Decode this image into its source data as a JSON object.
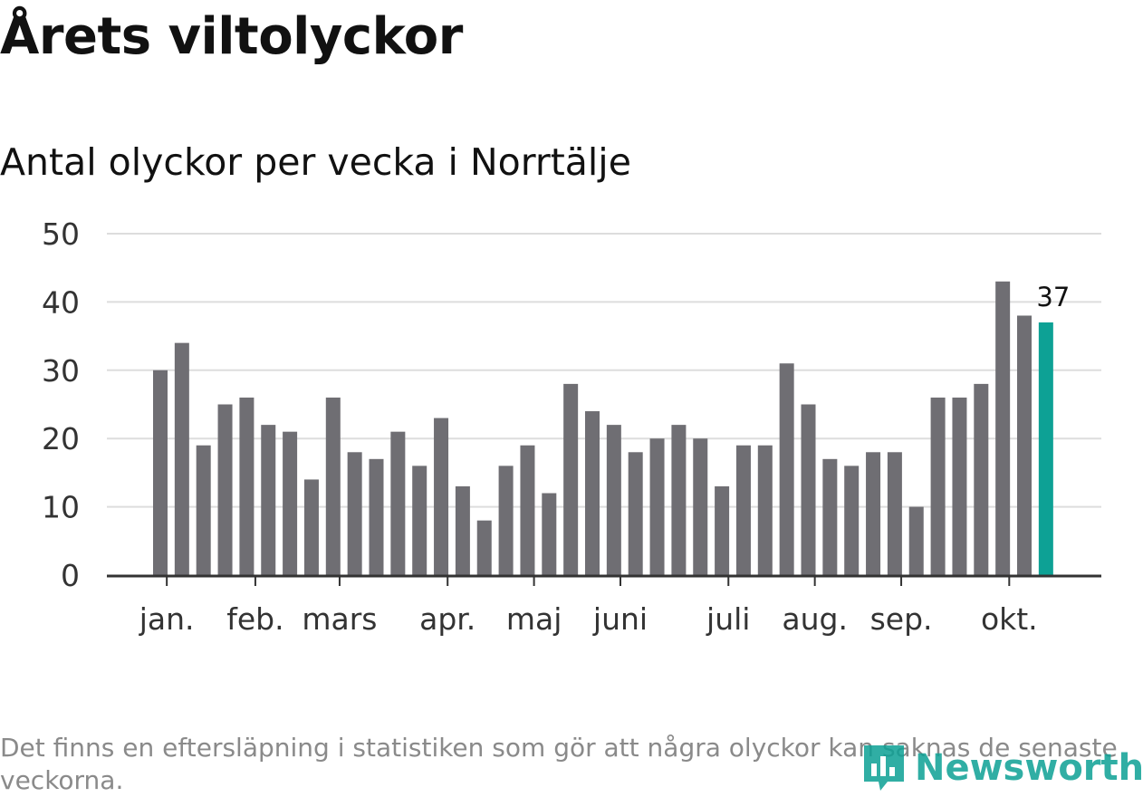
{
  "header": {
    "title": "Årets viltolyckor",
    "subtitle": "Antal olyckor per vecka i Norrtälje"
  },
  "footer": {
    "note": "Det finns en eftersläpning i statistiken som gör att några olyckor kan saknas de senaste veckorna.",
    "logo_text": "Newsworthy"
  },
  "colors": {
    "bar": "#6f6e73",
    "highlight": "#0da195",
    "grid": "#dddddd",
    "axis": "#333333"
  },
  "chart_data": {
    "type": "bar",
    "title": "Antal olyckor per vecka i Norrtälje",
    "xlabel": "",
    "ylabel": "",
    "ylim": [
      0,
      50
    ],
    "yticks": [
      0,
      10,
      20,
      30,
      40,
      50
    ],
    "values": [
      30,
      34,
      19,
      25,
      26,
      22,
      21,
      14,
      26,
      18,
      17,
      21,
      16,
      23,
      13,
      8,
      16,
      19,
      12,
      28,
      24,
      22,
      18,
      20,
      22,
      20,
      13,
      19,
      19,
      31,
      25,
      17,
      16,
      18,
      18,
      10,
      26,
      26,
      28,
      43,
      38,
      37
    ],
    "month_labels": [
      {
        "label": "jan.",
        "bar_index": 0.3
      },
      {
        "label": "feb.",
        "bar_index": 4.4
      },
      {
        "label": "mars",
        "bar_index": 8.3
      },
      {
        "label": "apr.",
        "bar_index": 13.3
      },
      {
        "label": "maj",
        "bar_index": 17.3
      },
      {
        "label": "juni",
        "bar_index": 21.3
      },
      {
        "label": "juli",
        "bar_index": 26.3
      },
      {
        "label": "aug.",
        "bar_index": 30.3
      },
      {
        "label": "sep.",
        "bar_index": 34.3
      },
      {
        "label": "okt.",
        "bar_index": 39.3
      }
    ],
    "highlight_index": 41,
    "data_label": "37"
  }
}
